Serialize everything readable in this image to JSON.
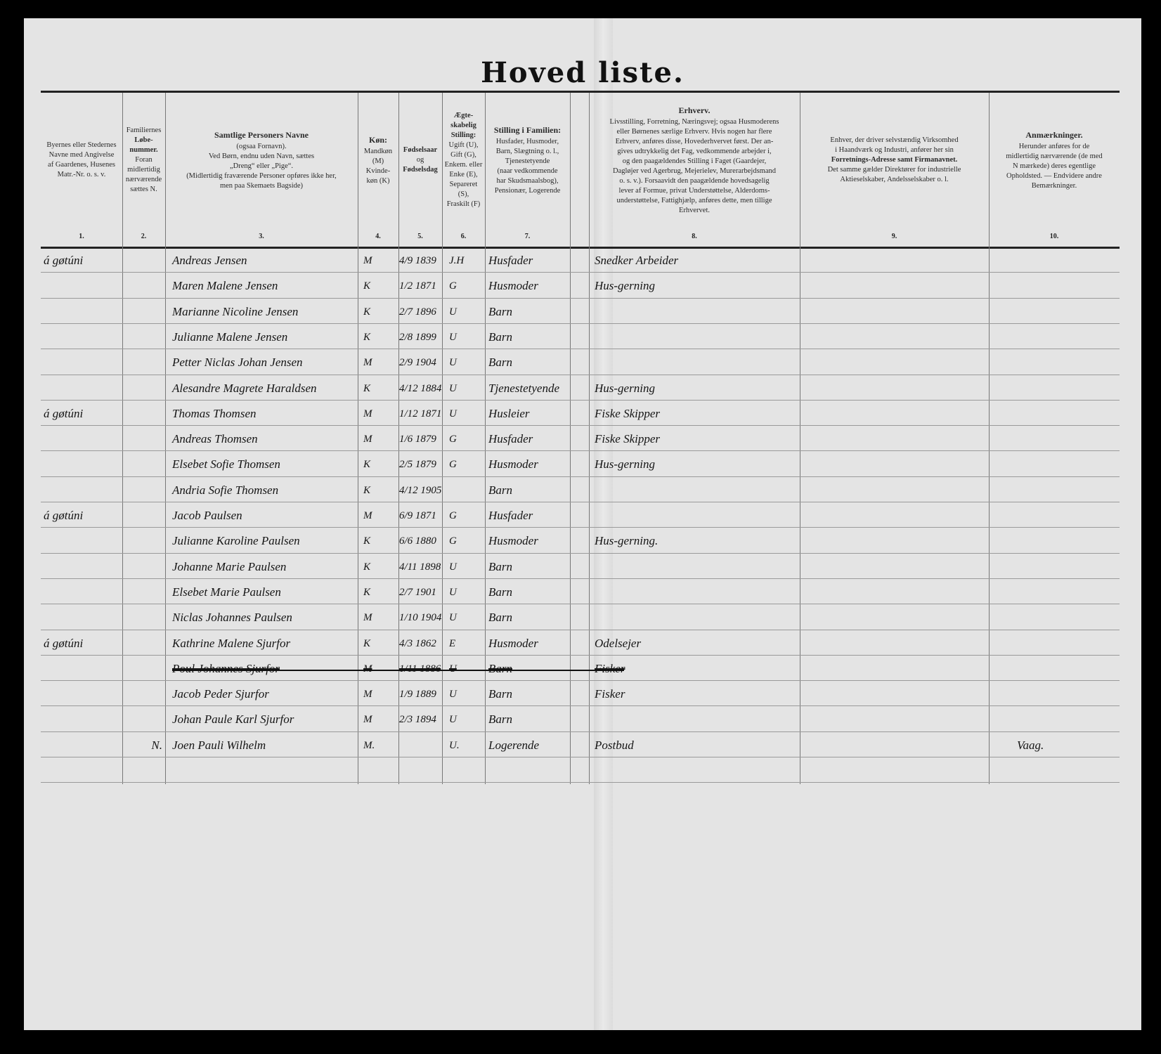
{
  "title": "Hoved liste.",
  "columns": [
    {
      "num": "1.",
      "header_lines": [
        "Byernes eller Stedernes",
        "Navne med Angivelse",
        "af Gaardenes, Husenes",
        "Matr.-Nr. o. s. v."
      ]
    },
    {
      "num": "2.",
      "header_lines": [
        "Familiernes",
        "Løbe-",
        "nummer.",
        "Foran",
        "midlertidig",
        "nærværende",
        "sættes N."
      ]
    },
    {
      "num": "3.",
      "header_lines": [
        "Samtlige Personers Navne",
        "(ogsaa Fornavn).",
        "Ved Børn, endnu uden Navn, sættes",
        "„Dreng“ eller „Pige“.",
        "(Midlertidig fraværende Personer opføres ikke her,",
        "men paa Skemaets Bagside)"
      ]
    },
    {
      "num": "4.",
      "header_lines": [
        "Køn:",
        "Mandkøn",
        "(M)",
        "Kvinde-",
        "køn (K)"
      ]
    },
    {
      "num": "5.",
      "header_lines": [
        "Fødselsaar",
        "og",
        "Fødselsdag"
      ]
    },
    {
      "num": "6.",
      "header_lines": [
        "Ægte-",
        "skabelig",
        "Stilling:",
        "Ugift (U),",
        "Gift (G),",
        "Enkem. eller",
        "Enke (E),",
        "Separeret",
        "(S),",
        "Fraskilt (F)"
      ]
    },
    {
      "num": "7.",
      "header_lines": [
        "Stilling i Familien:",
        "Husfader, Husmoder,",
        "Barn, Slægtning o. l.,",
        "Tjenestetyende",
        "(naar vedkommende",
        "har Skudsmaalsbog),",
        "Pensionær, Logerende"
      ]
    },
    {
      "num": "8.",
      "header_lines": [
        "Erhverv.",
        "Livsstilling, Forretning, Næringsvej; ogsaa Husmoderens",
        "eller Børnenes særlige Erhverv. Hvis nogen har flere",
        "Erhverv, anføres disse, Hovederhvervet først. Der an-",
        "gives udtrykkelig det Fag, vedkommende arbejder i,",
        "og den paagældendes Stilling i Faget (Gaardejer,",
        "Dagløjer ved Agerbrug, Mejerielev, Murerarbejdsmand",
        "o. s. v.). Forsaavidt den paagældende hovedsagelig",
        "lever af Formue, privat Understøttelse, Alderdoms-",
        "understøttelse, Fattighjælp, anføres dette, men tillige",
        "Erhvervet."
      ]
    },
    {
      "num": "9.",
      "header_lines": [
        "Enhver, der driver selvstændig Virksomhed",
        "i Haandværk og Industri, anfører her sin",
        "Forretnings-Adresse samt Firmanavnet.",
        "Det samme gælder Direktører for industrielle",
        "Aktieselskaber, Andelsselskaber o. l."
      ]
    },
    {
      "num": "10.",
      "header_lines": [
        "Anmærkninger.",
        "Herunder anføres for de",
        "midlertidig nærværende (de med",
        "N mærkede) deres egentlige",
        "Opholdsted. — Endvidere andre",
        "Bemærkninger."
      ]
    }
  ],
  "rows": [
    {
      "place": "á gøtúni",
      "fam": "",
      "name": "Andreas Jensen",
      "sex": "M",
      "born": "4/9 1839",
      "marital": "J.H",
      "position": "Husfader",
      "occupation": "Snedker Arbeider",
      "business": "",
      "remarks": "",
      "struck": false
    },
    {
      "place": "",
      "fam": "",
      "name": "Maren Malene Jensen",
      "sex": "K",
      "born": "1/2 1871",
      "marital": "G",
      "position": "Husmoder",
      "occupation": "Hus-gerning",
      "business": "",
      "remarks": "",
      "struck": false
    },
    {
      "place": "",
      "fam": "",
      "name": "Marianne Nicoline Jensen",
      "sex": "K",
      "born": "2/7 1896",
      "marital": "U",
      "position": "Barn",
      "occupation": "",
      "business": "",
      "remarks": "",
      "struck": false
    },
    {
      "place": "",
      "fam": "",
      "name": "Julianne Malene Jensen",
      "sex": "K",
      "born": "2/8 1899",
      "marital": "U",
      "position": "Barn",
      "occupation": "",
      "business": "",
      "remarks": "",
      "struck": false
    },
    {
      "place": "",
      "fam": "",
      "name": "Petter Niclas Johan Jensen",
      "sex": "M",
      "born": "2/9 1904",
      "marital": "U",
      "position": "Barn",
      "occupation": "",
      "business": "",
      "remarks": "",
      "struck": false
    },
    {
      "place": "",
      "fam": "",
      "name": "Alesandre Magrete Haraldsen",
      "sex": "K",
      "born": "4/12 1884",
      "marital": "U",
      "position": "Tjenestetyende",
      "occupation": "Hus-gerning",
      "business": "",
      "remarks": "",
      "struck": false
    },
    {
      "place": "á gøtúni",
      "fam": "",
      "name": "Thomas Thomsen",
      "sex": "M",
      "born": "1/12 1871",
      "marital": "U",
      "position": "Husleier",
      "occupation": "Fiske Skipper",
      "business": "",
      "remarks": "",
      "struck": false
    },
    {
      "place": "",
      "fam": "",
      "name": "Andreas Thomsen",
      "sex": "M",
      "born": "1/6 1879",
      "marital": "G",
      "position": "Husfader",
      "occupation": "Fiske Skipper",
      "business": "",
      "remarks": "",
      "struck": false
    },
    {
      "place": "",
      "fam": "",
      "name": "Elsebet Sofie Thomsen",
      "sex": "K",
      "born": "2/5 1879",
      "marital": "G",
      "position": "Husmoder",
      "occupation": "Hus-gerning",
      "business": "",
      "remarks": "",
      "struck": false
    },
    {
      "place": "",
      "fam": "",
      "name": "Andria Sofie Thomsen",
      "sex": "K",
      "born": "4/12 1905",
      "marital": "",
      "position": "Barn",
      "occupation": "",
      "business": "",
      "remarks": "",
      "struck": false
    },
    {
      "place": "á gøtúni",
      "fam": "",
      "name": "Jacob Paulsen",
      "sex": "M",
      "born": "6/9 1871",
      "marital": "G",
      "position": "Husfader",
      "occupation": "",
      "business": "",
      "remarks": "",
      "struck": false
    },
    {
      "place": "",
      "fam": "",
      "name": "Julianne Karoline Paulsen",
      "sex": "K",
      "born": "6/6 1880",
      "marital": "G",
      "position": "Husmoder",
      "occupation": "Hus-gerning.",
      "business": "",
      "remarks": "",
      "struck": false
    },
    {
      "place": "",
      "fam": "",
      "name": "Johanne Marie Paulsen",
      "sex": "K",
      "born": "4/11 1898",
      "marital": "U",
      "position": "Barn",
      "occupation": "",
      "business": "",
      "remarks": "",
      "struck": false
    },
    {
      "place": "",
      "fam": "",
      "name": "Elsebet Marie Paulsen",
      "sex": "K",
      "born": "2/7 1901",
      "marital": "U",
      "position": "Barn",
      "occupation": "",
      "business": "",
      "remarks": "",
      "struck": false
    },
    {
      "place": "",
      "fam": "",
      "name": "Niclas Johannes Paulsen",
      "sex": "M",
      "born": "1/10 1904",
      "marital": "U",
      "position": "Barn",
      "occupation": "",
      "business": "",
      "remarks": "",
      "struck": false
    },
    {
      "place": "á gøtúni",
      "fam": "",
      "name": "Kathrine Malene Sjurfor",
      "sex": "K",
      "born": "4/3 1862",
      "marital": "E",
      "position": "Husmoder",
      "occupation": "Odelsejer",
      "business": "",
      "remarks": "",
      "struck": false
    },
    {
      "place": "",
      "fam": "",
      "name": "Poul Johannes Sjurfor",
      "sex": "M",
      "born": "1/11 1886",
      "marital": "U",
      "position": "Barn",
      "occupation": "Fisker",
      "business": "",
      "remarks": "",
      "struck": true
    },
    {
      "place": "",
      "fam": "",
      "name": "Jacob Peder Sjurfor",
      "sex": "M",
      "born": "1/9 1889",
      "marital": "U",
      "position": "Barn",
      "occupation": "Fisker",
      "business": "",
      "remarks": "",
      "struck": false
    },
    {
      "place": "",
      "fam": "",
      "name": "Johan Paule Karl Sjurfor",
      "sex": "M",
      "born": "2/3 1894",
      "marital": "U",
      "position": "Barn",
      "occupation": "",
      "business": "",
      "remarks": "",
      "struck": false
    },
    {
      "place": "",
      "fam": "N.",
      "name": "Joen Pauli Wilhelm",
      "sex": "M.",
      "born": "",
      "marital": "U.",
      "position": "Logerende",
      "occupation": "Postbud",
      "business": "",
      "remarks": "Vaag.",
      "struck": false
    }
  ]
}
